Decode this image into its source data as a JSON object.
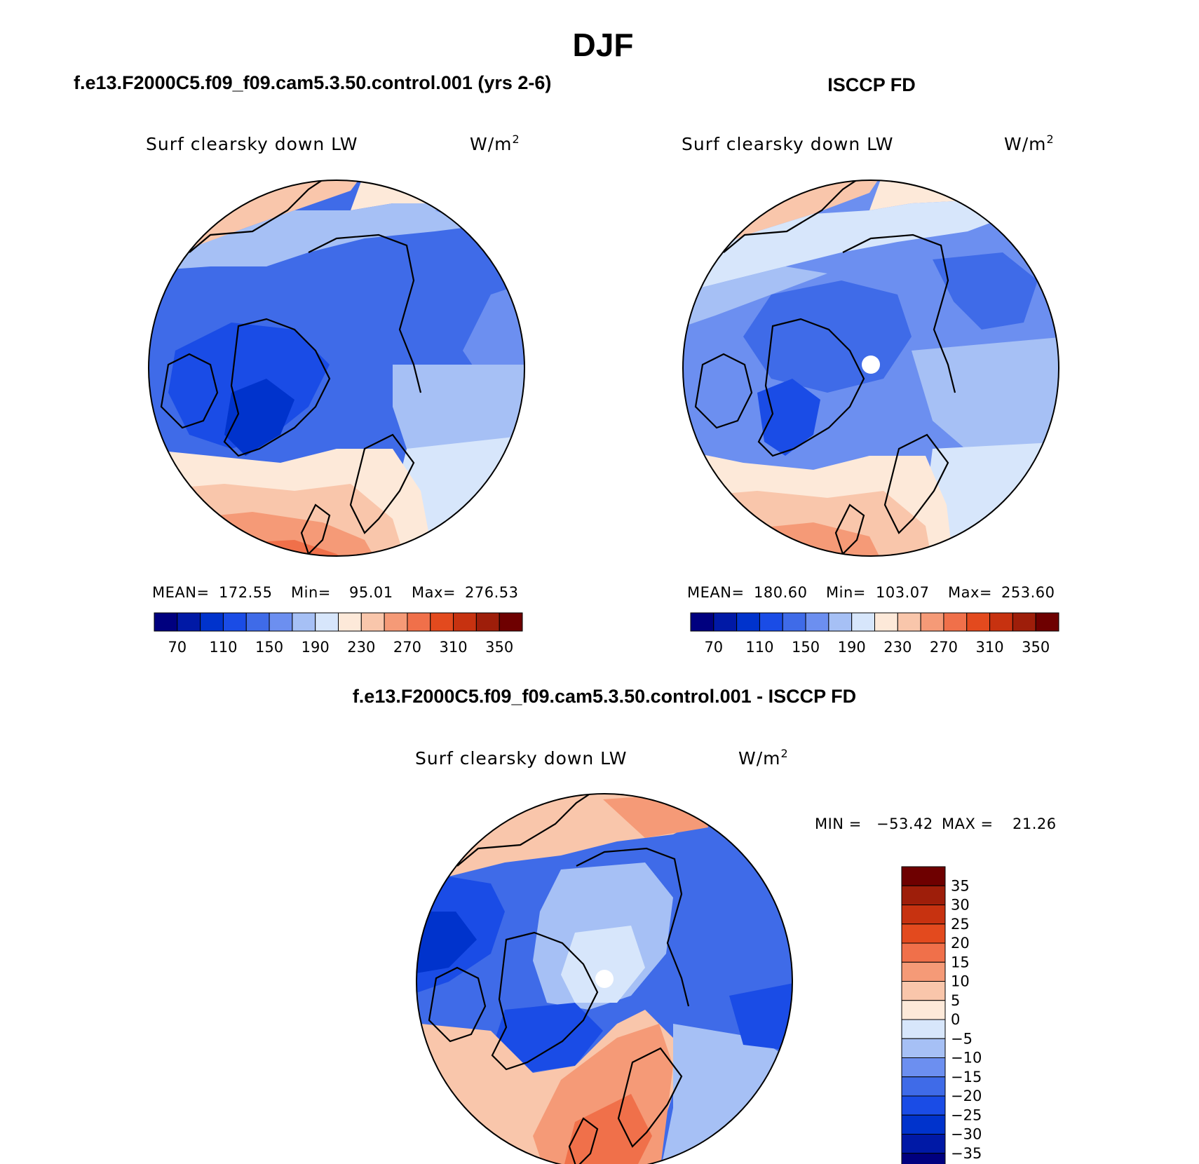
{
  "figure": {
    "title": "DJF"
  },
  "colors": {
    "abs_scale": [
      "#00007f",
      "#0019a6",
      "#0033cc",
      "#1a4ce6",
      "#3f6be8",
      "#6c8ff0",
      "#a6c0f5",
      "#d7e6fb",
      "#fde9d9",
      "#f9c6ab",
      "#f59a77",
      "#f0704a",
      "#e34a1e",
      "#c73210",
      "#9e1e0a",
      "#6e0000"
    ],
    "diff_scale": [
      "#00007f",
      "#0019a6",
      "#0033cc",
      "#1a4ce6",
      "#3f6be8",
      "#6c8ff0",
      "#a6c0f5",
      "#d7e6fb",
      "#fde9d9",
      "#f9c6ab",
      "#f59a77",
      "#f0704a",
      "#e34a1e",
      "#c73210",
      "#9e1e0a",
      "#6e0000"
    ]
  },
  "chart_data": [
    {
      "type": "heatmap",
      "title": "f.e13.F2000C5.f09_f09.cam5.3.50.control.001 (yrs 2-6)",
      "variable": "Surf clearsky down LW",
      "units_base": "W/m",
      "units_exp": "2",
      "projection": "north polar stereographic",
      "stats": {
        "mean_label": "MEAN=",
        "mean": "172.55",
        "min_label": "Min=",
        "min": "95.01",
        "max_label": "Max=",
        "max": "276.53"
      },
      "colorbar": {
        "orientation": "horizontal",
        "levels": [
          70,
          90,
          110,
          130,
          150,
          170,
          190,
          210,
          230,
          250,
          270,
          290,
          310,
          330,
          350
        ],
        "labels": [
          "70",
          "110",
          "150",
          "190",
          "230",
          "270",
          "310",
          "350"
        ]
      }
    },
    {
      "type": "heatmap",
      "title": "ISCCP FD",
      "variable": "Surf clearsky down LW",
      "units_base": "W/m",
      "units_exp": "2",
      "projection": "north polar stereographic",
      "stats": {
        "mean_label": "MEAN=",
        "mean": "180.60",
        "min_label": "Min=",
        "min": "103.07",
        "max_label": "Max=",
        "max": "253.60"
      },
      "colorbar": {
        "orientation": "horizontal",
        "levels": [
          70,
          90,
          110,
          130,
          150,
          170,
          190,
          210,
          230,
          250,
          270,
          290,
          310,
          330,
          350
        ],
        "labels": [
          "70",
          "110",
          "150",
          "190",
          "230",
          "270",
          "310",
          "350"
        ]
      }
    },
    {
      "type": "heatmap",
      "title": "f.e13.F2000C5.f09_f09.cam5.3.50.control.001 - ISCCP FD",
      "variable": "Surf clearsky down LW",
      "units_base": "W/m",
      "units_exp": "2",
      "projection": "north polar stereographic",
      "stats": {
        "min_label": "MIN =",
        "min": "−53.42",
        "max_label": "MAX =",
        "max": "21.26"
      },
      "colorbar": {
        "orientation": "vertical",
        "levels": [
          35,
          30,
          25,
          20,
          15,
          10,
          5,
          0,
          -5,
          -10,
          -15,
          -20,
          -25,
          -30,
          -35
        ],
        "labels": [
          "35",
          "30",
          "25",
          "20",
          "15",
          "10",
          "5",
          "0",
          "−5",
          "−10",
          "−15",
          "−20",
          "−25",
          "−30",
          "−35"
        ]
      }
    }
  ]
}
